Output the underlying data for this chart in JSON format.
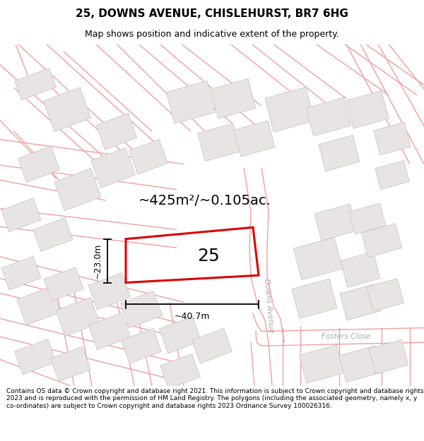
{
  "title": "25, DOWNS AVENUE, CHISLEHURST, BR7 6HG",
  "subtitle": "Map shows position and indicative extent of the property.",
  "area_text": "~425m²/~0.105ac.",
  "width_text": "~40.7m",
  "height_text": "~23.0m",
  "number_text": "25",
  "footer_text": "Contains OS data © Crown copyright and database right 2021. This information is subject to Crown copyright and database rights 2023 and is reproduced with the permission of HM Land Registry. The polygons (including the associated geometry, namely x, y co-ordinates) are subject to Crown copyright and database rights 2023 Ordnance Survey 100026316.",
  "bg_color": "#ffffff",
  "building_fill": "#e8e4e4",
  "building_edge": "#c8c0c0",
  "road_line_color": "#f0a0a0",
  "highlight_color": "#dd0000",
  "road_label_color": "#aaaaaa",
  "title_fontsize": 11,
  "subtitle_fontsize": 9,
  "footer_fontsize": 6.5,
  "area_fontsize": 14,
  "number_fontsize": 18,
  "dim_label_fontsize": 9,
  "road_label_fontsize": 7.5
}
